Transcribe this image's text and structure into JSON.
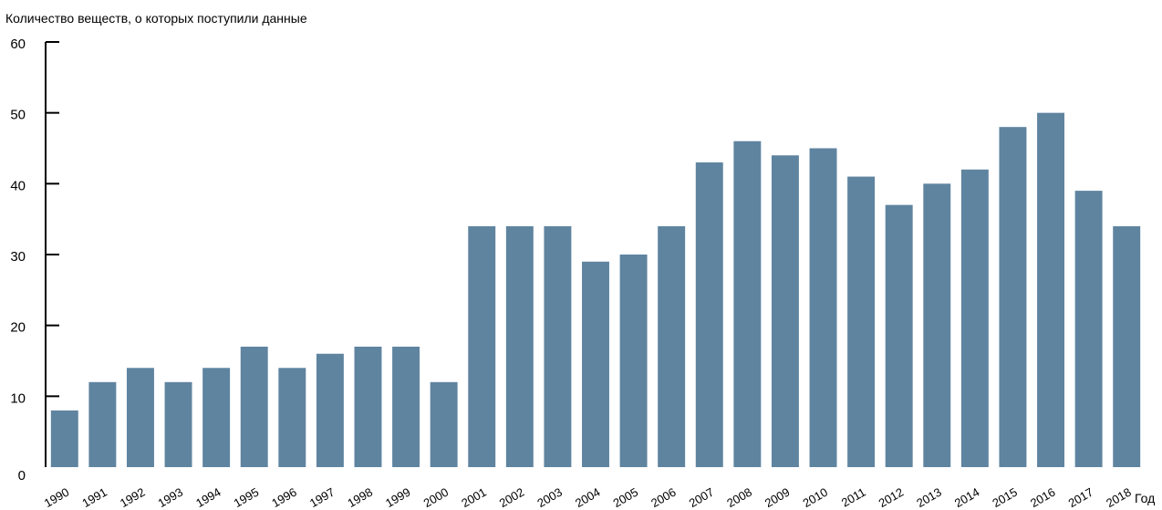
{
  "chart_data": {
    "type": "bar",
    "ylabel": "Количество веществ, о которых поступили данные",
    "xlabel": "Год",
    "ylim": [
      0,
      60
    ],
    "yticks": [
      0,
      10,
      20,
      30,
      40,
      50,
      60
    ],
    "grid": false,
    "bar_color": "#5f84a0",
    "categories": [
      "1990",
      "1991",
      "1992",
      "1993",
      "1994",
      "1995",
      "1996",
      "1997",
      "1998",
      "1999",
      "2000",
      "2001",
      "2002",
      "2003",
      "2004",
      "2005",
      "2006",
      "2007",
      "2008",
      "2009",
      "2010",
      "2011",
      "2012",
      "2013",
      "2014",
      "2015",
      "2016",
      "2017",
      "2018"
    ],
    "values": [
      8,
      12,
      14,
      12,
      14,
      17,
      14,
      16,
      17,
      17,
      12,
      34,
      34,
      34,
      29,
      30,
      34,
      43,
      46,
      44,
      45,
      41,
      37,
      40,
      42,
      48,
      50,
      39,
      34
    ]
  }
}
